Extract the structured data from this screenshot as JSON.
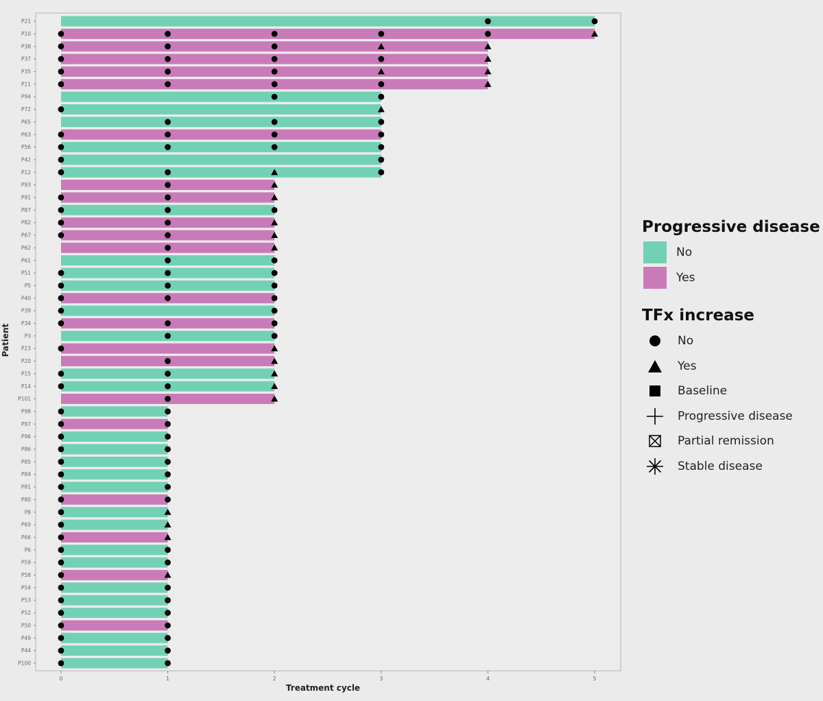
{
  "chart_data": {
    "type": "bar",
    "orientation": "horizontal",
    "xlabel": "Treatment cycle",
    "ylabel": "Patient",
    "xlim": [
      0,
      5
    ],
    "xticks": [
      0,
      1,
      2,
      3,
      4,
      5
    ],
    "grid": false,
    "legend_placement": "right",
    "colors": {
      "No": "#72d1b4",
      "Yes": "#c97bb9"
    },
    "legends": [
      {
        "title": "Progressive disease",
        "items": [
          {
            "label": "No",
            "color": "#72d1b4"
          },
          {
            "label": "Yes",
            "color": "#c97bb9"
          }
        ]
      },
      {
        "title": "TFx increase",
        "items": [
          {
            "label": "No",
            "shape": "circle"
          },
          {
            "label": "Yes",
            "shape": "triangle"
          },
          {
            "label": "Baseline",
            "shape": "square"
          },
          {
            "label": "Progressive disease",
            "shape": "plus"
          },
          {
            "label": "Partial remission",
            "shape": "boxed-x"
          },
          {
            "label": "Stable disease",
            "shape": "asterisk"
          }
        ]
      }
    ],
    "patients": [
      {
        "id": "P21",
        "cycles": 5,
        "pd": "No"
      },
      {
        "id": "P10",
        "cycles": 5,
        "pd": "Yes"
      },
      {
        "id": "P38",
        "cycles": 4,
        "pd": "Yes"
      },
      {
        "id": "P37",
        "cycles": 4,
        "pd": "Yes"
      },
      {
        "id": "P35",
        "cycles": 4,
        "pd": "Yes"
      },
      {
        "id": "P11",
        "cycles": 4,
        "pd": "Yes"
      },
      {
        "id": "P94",
        "cycles": 3,
        "pd": "No"
      },
      {
        "id": "P72",
        "cycles": 3,
        "pd": "No"
      },
      {
        "id": "P65",
        "cycles": 3,
        "pd": "No"
      },
      {
        "id": "P63",
        "cycles": 3,
        "pd": "Yes"
      },
      {
        "id": "P56",
        "cycles": 3,
        "pd": "No"
      },
      {
        "id": "P42",
        "cycles": 3,
        "pd": "No"
      },
      {
        "id": "P12",
        "cycles": 3,
        "pd": "No"
      },
      {
        "id": "P93",
        "cycles": 2,
        "pd": "Yes"
      },
      {
        "id": "P91",
        "cycles": 2,
        "pd": "Yes"
      },
      {
        "id": "P87",
        "cycles": 2,
        "pd": "No"
      },
      {
        "id": "P82",
        "cycles": 2,
        "pd": "Yes"
      },
      {
        "id": "P67",
        "cycles": 2,
        "pd": "Yes"
      },
      {
        "id": "P62",
        "cycles": 2,
        "pd": "Yes"
      },
      {
        "id": "P61",
        "cycles": 2,
        "pd": "No"
      },
      {
        "id": "P51",
        "cycles": 2,
        "pd": "No"
      },
      {
        "id": "P5",
        "cycles": 2,
        "pd": "No"
      },
      {
        "id": "P40",
        "cycles": 2,
        "pd": "Yes"
      },
      {
        "id": "P39",
        "cycles": 2,
        "pd": "No"
      },
      {
        "id": "P34",
        "cycles": 2,
        "pd": "Yes"
      },
      {
        "id": "P3",
        "cycles": 2,
        "pd": "No"
      },
      {
        "id": "P23",
        "cycles": 2,
        "pd": "Yes"
      },
      {
        "id": "P20",
        "cycles": 2,
        "pd": "Yes"
      },
      {
        "id": "P15",
        "cycles": 2,
        "pd": "No"
      },
      {
        "id": "P14",
        "cycles": 2,
        "pd": "No"
      },
      {
        "id": "P101",
        "cycles": 2,
        "pd": "Yes"
      },
      {
        "id": "P98",
        "cycles": 1,
        "pd": "No"
      },
      {
        "id": "P97",
        "cycles": 1,
        "pd": "Yes"
      },
      {
        "id": "P96",
        "cycles": 1,
        "pd": "No"
      },
      {
        "id": "P86",
        "cycles": 1,
        "pd": "No"
      },
      {
        "id": "P85",
        "cycles": 1,
        "pd": "No"
      },
      {
        "id": "P84",
        "cycles": 1,
        "pd": "No"
      },
      {
        "id": "P81",
        "cycles": 1,
        "pd": "No"
      },
      {
        "id": "P80",
        "cycles": 1,
        "pd": "Yes"
      },
      {
        "id": "P8",
        "cycles": 1,
        "pd": "No"
      },
      {
        "id": "P69",
        "cycles": 1,
        "pd": "No"
      },
      {
        "id": "P66",
        "cycles": 1,
        "pd": "Yes"
      },
      {
        "id": "P6",
        "cycles": 1,
        "pd": "No"
      },
      {
        "id": "P59",
        "cycles": 1,
        "pd": "No"
      },
      {
        "id": "P58",
        "cycles": 1,
        "pd": "Yes"
      },
      {
        "id": "P54",
        "cycles": 1,
        "pd": "No"
      },
      {
        "id": "P53",
        "cycles": 1,
        "pd": "No"
      },
      {
        "id": "P52",
        "cycles": 1,
        "pd": "No"
      },
      {
        "id": "P50",
        "cycles": 1,
        "pd": "Yes"
      },
      {
        "id": "P49",
        "cycles": 1,
        "pd": "No"
      },
      {
        "id": "P44",
        "cycles": 1,
        "pd": "No"
      },
      {
        "id": "P100",
        "cycles": 1,
        "pd": "No"
      }
    ],
    "tfx_increase_markers": [
      {
        "patient": "P21",
        "cycle": 4,
        "tfx": "No"
      },
      {
        "patient": "P21",
        "cycle": 5,
        "tfx": "No"
      },
      {
        "patient": "P10",
        "cycle": 0,
        "tfx": "No"
      },
      {
        "patient": "P10",
        "cycle": 1,
        "tfx": "No"
      },
      {
        "patient": "P10",
        "cycle": 2,
        "tfx": "No"
      },
      {
        "patient": "P10",
        "cycle": 3,
        "tfx": "No"
      },
      {
        "patient": "P10",
        "cycle": 4,
        "tfx": "No"
      },
      {
        "patient": "P10",
        "cycle": 5,
        "tfx": "Yes"
      },
      {
        "patient": "P38",
        "cycle": 0,
        "tfx": "No"
      },
      {
        "patient": "P38",
        "cycle": 1,
        "tfx": "No"
      },
      {
        "patient": "P38",
        "cycle": 2,
        "tfx": "No"
      },
      {
        "patient": "P38",
        "cycle": 3,
        "tfx": "Yes"
      },
      {
        "patient": "P38",
        "cycle": 4,
        "tfx": "Yes"
      },
      {
        "patient": "P37",
        "cycle": 0,
        "tfx": "No"
      },
      {
        "patient": "P37",
        "cycle": 1,
        "tfx": "No"
      },
      {
        "patient": "P37",
        "cycle": 2,
        "tfx": "No"
      },
      {
        "patient": "P37",
        "cycle": 3,
        "tfx": "No"
      },
      {
        "patient": "P37",
        "cycle": 4,
        "tfx": "Yes"
      },
      {
        "patient": "P35",
        "cycle": 0,
        "tfx": "No"
      },
      {
        "patient": "P35",
        "cycle": 1,
        "tfx": "No"
      },
      {
        "patient": "P35",
        "cycle": 2,
        "tfx": "No"
      },
      {
        "patient": "P35",
        "cycle": 3,
        "tfx": "Yes"
      },
      {
        "patient": "P35",
        "cycle": 4,
        "tfx": "Yes"
      },
      {
        "patient": "P11",
        "cycle": 0,
        "tfx": "No"
      },
      {
        "patient": "P11",
        "cycle": 1,
        "tfx": "No"
      },
      {
        "patient": "P11",
        "cycle": 2,
        "tfx": "No"
      },
      {
        "patient": "P11",
        "cycle": 3,
        "tfx": "No"
      },
      {
        "patient": "P11",
        "cycle": 4,
        "tfx": "Yes"
      },
      {
        "patient": "P94",
        "cycle": 2,
        "tfx": "No"
      },
      {
        "patient": "P94",
        "cycle": 3,
        "tfx": "No"
      },
      {
        "patient": "P72",
        "cycle": 0,
        "tfx": "No"
      },
      {
        "patient": "P72",
        "cycle": 3,
        "tfx": "Yes"
      },
      {
        "patient": "P65",
        "cycle": 1,
        "tfx": "No"
      },
      {
        "patient": "P65",
        "cycle": 2,
        "tfx": "No"
      },
      {
        "patient": "P65",
        "cycle": 3,
        "tfx": "No"
      },
      {
        "patient": "P63",
        "cycle": 0,
        "tfx": "No"
      },
      {
        "patient": "P63",
        "cycle": 1,
        "tfx": "No"
      },
      {
        "patient": "P63",
        "cycle": 2,
        "tfx": "No"
      },
      {
        "patient": "P63",
        "cycle": 3,
        "tfx": "No"
      },
      {
        "patient": "P56",
        "cycle": 0,
        "tfx": "No"
      },
      {
        "patient": "P56",
        "cycle": 1,
        "tfx": "No"
      },
      {
        "patient": "P56",
        "cycle": 2,
        "tfx": "No"
      },
      {
        "patient": "P56",
        "cycle": 3,
        "tfx": "No"
      },
      {
        "patient": "P42",
        "cycle": 0,
        "tfx": "No"
      },
      {
        "patient": "P42",
        "cycle": 3,
        "tfx": "No"
      },
      {
        "patient": "P12",
        "cycle": 0,
        "tfx": "No"
      },
      {
        "patient": "P12",
        "cycle": 1,
        "tfx": "No"
      },
      {
        "patient": "P12",
        "cycle": 2,
        "tfx": "Yes"
      },
      {
        "patient": "P12",
        "cycle": 3,
        "tfx": "No"
      },
      {
        "patient": "P93",
        "cycle": 1,
        "tfx": "No"
      },
      {
        "patient": "P93",
        "cycle": 2,
        "tfx": "Yes"
      },
      {
        "patient": "P91",
        "cycle": 0,
        "tfx": "No"
      },
      {
        "patient": "P91",
        "cycle": 1,
        "tfx": "No"
      },
      {
        "patient": "P91",
        "cycle": 2,
        "tfx": "Yes"
      },
      {
        "patient": "P87",
        "cycle": 0,
        "tfx": "No"
      },
      {
        "patient": "P87",
        "cycle": 1,
        "tfx": "No"
      },
      {
        "patient": "P87",
        "cycle": 2,
        "tfx": "No"
      },
      {
        "patient": "P82",
        "cycle": 0,
        "tfx": "No"
      },
      {
        "patient": "P82",
        "cycle": 1,
        "tfx": "No"
      },
      {
        "patient": "P82",
        "cycle": 2,
        "tfx": "Yes"
      },
      {
        "patient": "P67",
        "cycle": 0,
        "tfx": "No"
      },
      {
        "patient": "P67",
        "cycle": 1,
        "tfx": "No"
      },
      {
        "patient": "P67",
        "cycle": 2,
        "tfx": "Yes"
      },
      {
        "patient": "P62",
        "cycle": 1,
        "tfx": "No"
      },
      {
        "patient": "P62",
        "cycle": 2,
        "tfx": "Yes"
      },
      {
        "patient": "P61",
        "cycle": 1,
        "tfx": "No"
      },
      {
        "patient": "P61",
        "cycle": 2,
        "tfx": "No"
      },
      {
        "patient": "P51",
        "cycle": 0,
        "tfx": "No"
      },
      {
        "patient": "P51",
        "cycle": 1,
        "tfx": "No"
      },
      {
        "patient": "P51",
        "cycle": 2,
        "tfx": "No"
      },
      {
        "patient": "P5",
        "cycle": 0,
        "tfx": "No"
      },
      {
        "patient": "P5",
        "cycle": 1,
        "tfx": "No"
      },
      {
        "patient": "P5",
        "cycle": 2,
        "tfx": "No"
      },
      {
        "patient": "P40",
        "cycle": 0,
        "tfx": "No"
      },
      {
        "patient": "P40",
        "cycle": 1,
        "tfx": "No"
      },
      {
        "patient": "P40",
        "cycle": 2,
        "tfx": "No"
      },
      {
        "patient": "P39",
        "cycle": 0,
        "tfx": "No"
      },
      {
        "patient": "P39",
        "cycle": 2,
        "tfx": "No"
      },
      {
        "patient": "P34",
        "cycle": 0,
        "tfx": "No"
      },
      {
        "patient": "P34",
        "cycle": 1,
        "tfx": "No"
      },
      {
        "patient": "P34",
        "cycle": 2,
        "tfx": "No"
      },
      {
        "patient": "P3",
        "cycle": 1,
        "tfx": "No"
      },
      {
        "patient": "P3",
        "cycle": 2,
        "tfx": "No"
      },
      {
        "patient": "P23",
        "cycle": 0,
        "tfx": "No"
      },
      {
        "patient": "P23",
        "cycle": 2,
        "tfx": "Yes"
      },
      {
        "patient": "P20",
        "cycle": 1,
        "tfx": "No"
      },
      {
        "patient": "P20",
        "cycle": 2,
        "tfx": "Yes"
      },
      {
        "patient": "P15",
        "cycle": 0,
        "tfx": "No"
      },
      {
        "patient": "P15",
        "cycle": 1,
        "tfx": "No"
      },
      {
        "patient": "P15",
        "cycle": 2,
        "tfx": "Yes"
      },
      {
        "patient": "P14",
        "cycle": 0,
        "tfx": "No"
      },
      {
        "patient": "P14",
        "cycle": 1,
        "tfx": "No"
      },
      {
        "patient": "P14",
        "cycle": 2,
        "tfx": "Yes"
      },
      {
        "patient": "P101",
        "cycle": 1,
        "tfx": "No"
      },
      {
        "patient": "P101",
        "cycle": 2,
        "tfx": "Yes"
      },
      {
        "patient": "P98",
        "cycle": 0,
        "tfx": "No"
      },
      {
        "patient": "P98",
        "cycle": 1,
        "tfx": "No"
      },
      {
        "patient": "P97",
        "cycle": 0,
        "tfx": "No"
      },
      {
        "patient": "P97",
        "cycle": 1,
        "tfx": "No"
      },
      {
        "patient": "P96",
        "cycle": 0,
        "tfx": "No"
      },
      {
        "patient": "P96",
        "cycle": 1,
        "tfx": "No"
      },
      {
        "patient": "P86",
        "cycle": 0,
        "tfx": "No"
      },
      {
        "patient": "P86",
        "cycle": 1,
        "tfx": "No"
      },
      {
        "patient": "P85",
        "cycle": 0,
        "tfx": "No"
      },
      {
        "patient": "P85",
        "cycle": 1,
        "tfx": "No"
      },
      {
        "patient": "P84",
        "cycle": 0,
        "tfx": "No"
      },
      {
        "patient": "P84",
        "cycle": 1,
        "tfx": "No"
      },
      {
        "patient": "P81",
        "cycle": 0,
        "tfx": "No"
      },
      {
        "patient": "P81",
        "cycle": 1,
        "tfx": "No"
      },
      {
        "patient": "P80",
        "cycle": 0,
        "tfx": "No"
      },
      {
        "patient": "P80",
        "cycle": 1,
        "tfx": "No"
      },
      {
        "patient": "P8",
        "cycle": 0,
        "tfx": "No"
      },
      {
        "patient": "P8",
        "cycle": 1,
        "tfx": "Yes"
      },
      {
        "patient": "P69",
        "cycle": 0,
        "tfx": "No"
      },
      {
        "patient": "P69",
        "cycle": 1,
        "tfx": "Yes"
      },
      {
        "patient": "P66",
        "cycle": 0,
        "tfx": "No"
      },
      {
        "patient": "P66",
        "cycle": 1,
        "tfx": "Yes"
      },
      {
        "patient": "P6",
        "cycle": 0,
        "tfx": "No"
      },
      {
        "patient": "P6",
        "cycle": 1,
        "tfx": "No"
      },
      {
        "patient": "P59",
        "cycle": 0,
        "tfx": "No"
      },
      {
        "patient": "P59",
        "cycle": 1,
        "tfx": "No"
      },
      {
        "patient": "P58",
        "cycle": 0,
        "tfx": "No"
      },
      {
        "patient": "P58",
        "cycle": 1,
        "tfx": "Yes"
      },
      {
        "patient": "P54",
        "cycle": 0,
        "tfx": "No"
      },
      {
        "patient": "P54",
        "cycle": 1,
        "tfx": "No"
      },
      {
        "patient": "P53",
        "cycle": 0,
        "tfx": "No"
      },
      {
        "patient": "P53",
        "cycle": 1,
        "tfx": "No"
      },
      {
        "patient": "P52",
        "cycle": 0,
        "tfx": "No"
      },
      {
        "patient": "P52",
        "cycle": 1,
        "tfx": "No"
      },
      {
        "patient": "P50",
        "cycle": 0,
        "tfx": "No"
      },
      {
        "patient": "P50",
        "cycle": 1,
        "tfx": "No"
      },
      {
        "patient": "P49",
        "cycle": 0,
        "tfx": "No"
      },
      {
        "patient": "P49",
        "cycle": 1,
        "tfx": "No"
      },
      {
        "patient": "P44",
        "cycle": 0,
        "tfx": "No"
      },
      {
        "patient": "P44",
        "cycle": 1,
        "tfx": "No"
      },
      {
        "patient": "P100",
        "cycle": 0,
        "tfx": "No"
      },
      {
        "patient": "P100",
        "cycle": 1,
        "tfx": "No"
      }
    ]
  }
}
